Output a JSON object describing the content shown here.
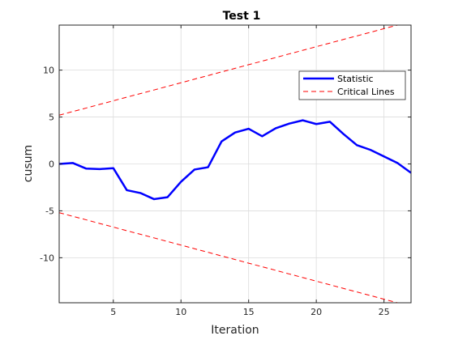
{
  "chart_data": {
    "type": "line",
    "title": "Test 1",
    "xlabel": "Iteration",
    "ylabel": "cusum",
    "xlim": [
      1,
      27
    ],
    "ylim": [
      -14.8,
      14.8
    ],
    "xticks": [
      5,
      10,
      15,
      20,
      25
    ],
    "yticks": [
      -10,
      -5,
      0,
      5,
      10
    ],
    "grid": true,
    "legend_position": "top-right",
    "x": [
      1,
      2,
      3,
      4,
      5,
      6,
      7,
      8,
      9,
      10,
      11,
      12,
      13,
      14,
      15,
      16,
      17,
      18,
      19,
      20,
      21,
      22,
      23,
      24,
      25,
      26,
      27
    ],
    "series": [
      {
        "name": "Statistic",
        "color": "#0000ff",
        "style": "solid",
        "values": [
          0.0,
          0.1,
          -0.5,
          -0.55,
          -0.45,
          -2.8,
          -3.1,
          -3.75,
          -3.55,
          -1.9,
          -0.6,
          -0.35,
          2.4,
          3.35,
          3.75,
          2.95,
          3.8,
          4.3,
          4.65,
          4.25,
          4.5,
          3.2,
          2.0,
          1.5,
          0.8,
          0.1,
          -0.95
        ]
      },
      {
        "name": "Critical Lines",
        "color": "#ff0000",
        "style": "dashed",
        "values": [
          5.2,
          5.58,
          5.96,
          6.35,
          6.73,
          7.12,
          7.5,
          7.88,
          8.27,
          8.65,
          9.04,
          9.42,
          9.81,
          10.19,
          10.58,
          10.96,
          11.34,
          11.73,
          12.11,
          12.5,
          12.88,
          13.27,
          13.65,
          14.03,
          14.42,
          14.8,
          15.19
        ]
      },
      {
        "name": "",
        "color": "#ff0000",
        "style": "dashed",
        "values": [
          -5.2,
          -5.58,
          -5.96,
          -6.35,
          -6.73,
          -7.12,
          -7.5,
          -7.88,
          -8.27,
          -8.65,
          -9.04,
          -9.42,
          -9.81,
          -10.19,
          -10.58,
          -10.96,
          -11.34,
          -11.73,
          -12.11,
          -12.5,
          -12.88,
          -13.27,
          -13.65,
          -14.03,
          -14.42,
          -14.8,
          -15.19
        ]
      }
    ]
  }
}
